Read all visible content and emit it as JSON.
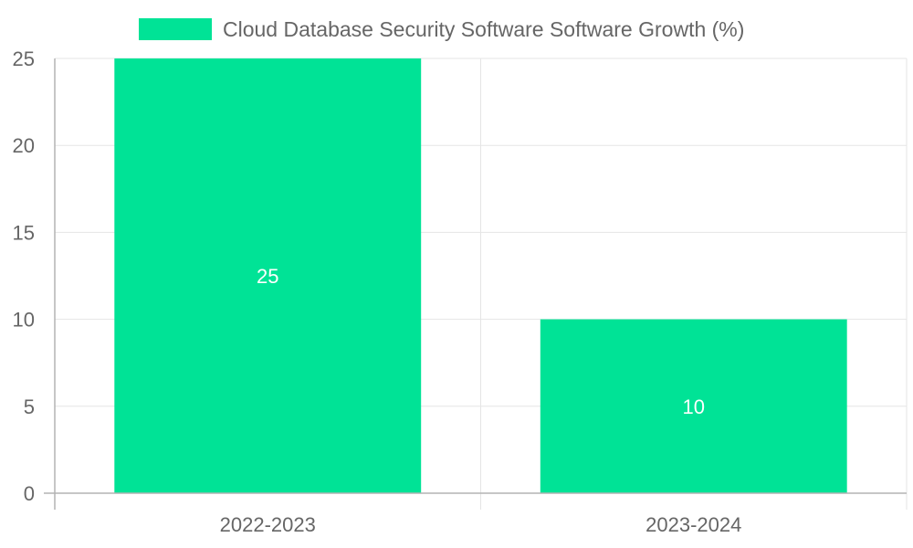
{
  "chart_data": {
    "type": "bar",
    "categories": [
      "2022-2023",
      "2023-2024"
    ],
    "series": [
      {
        "name": "Cloud Database Security Software Software Growth (%)",
        "values": [
          25,
          10
        ],
        "color": "#00e396"
      }
    ],
    "title": "",
    "xlabel": "",
    "ylabel": "",
    "ylim": [
      0,
      25
    ],
    "yticks": [
      "0",
      "5",
      "10",
      "15",
      "20",
      "25"
    ],
    "data_labels": [
      "25",
      "10"
    ],
    "legend": {
      "position": "top",
      "label": "Cloud Database Security Software Software Growth (%)"
    },
    "grid": true,
    "colors": {
      "bar": "#00e396",
      "grid": "#e5e5e5",
      "axis": "#b3b3b3",
      "text": "#666666",
      "data_label": "#ffffff"
    }
  }
}
